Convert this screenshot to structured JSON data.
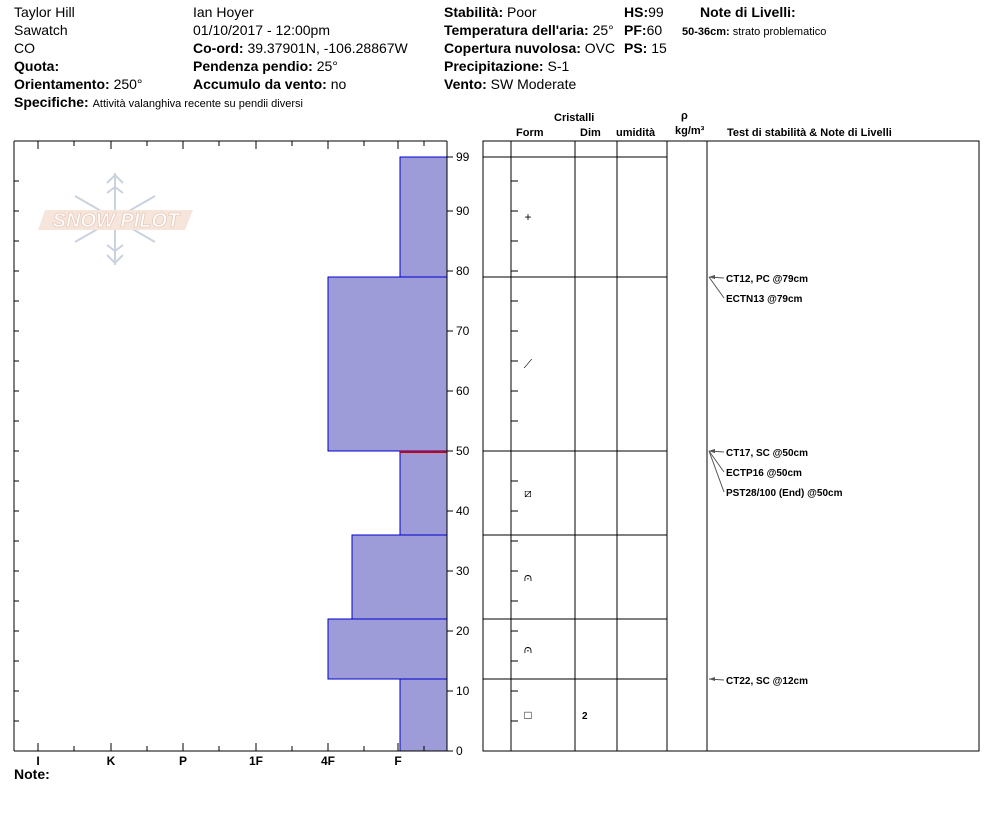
{
  "header": {
    "site": "Taylor Hill",
    "range": "Sawatch",
    "state": "CO",
    "elevation_label": "Quota:",
    "aspect_label": "Orientamento:",
    "aspect_value": "250°",
    "specifics_label": "Specifiche:",
    "specifics_value": "Attività valanghiva recente su pendii diversi",
    "observer": "Ian Hoyer",
    "datetime": "01/10/2017 - 12:00pm",
    "coord_label": "Co-ord:",
    "coord_value": "39.37901N, -106.28867W",
    "slope_label": "Pendenza pendio:",
    "slope_value": "25°",
    "wind_loading_label": "Accumulo da vento:",
    "wind_loading_value": "no",
    "stability_label": "Stabilità:",
    "stability_value": "Poor",
    "air_temp_label": "Temperatura dell'aria:",
    "air_temp_value": "25°",
    "sky_label": "Copertura nuvolosa:",
    "sky_value": "OVC",
    "precip_label": "Precipitazione:",
    "precip_value": "S-1",
    "wind_label": "Vento:",
    "wind_value": "SW Moderate",
    "hs_label": "HS:",
    "hs_value": "99",
    "pf_label": "PF:",
    "pf_value": "60",
    "ps_label": "PS:",
    "ps_value": "15",
    "layer_notes_label": "Note di Livelli:",
    "layer_note_range": "50-36cm:",
    "layer_note_text": "strato problematico"
  },
  "columns": {
    "crystals": "Cristalli",
    "form": "Form",
    "size": "Dim",
    "moisture": "umidità",
    "rho": "ρ",
    "density_unit": "kg/m³",
    "tests": "Test di stabilità & Note di Livelli"
  },
  "notes_label": "Note:",
  "logo_text": "SNOW PILOT",
  "chart_data": {
    "type": "bar",
    "title": "",
    "ylabel": "",
    "ylim": [
      0,
      99
    ],
    "y_ticks": [
      0,
      10,
      20,
      30,
      40,
      50,
      60,
      70,
      80,
      90,
      99
    ],
    "hardness_scale": [
      "I",
      "K",
      "P",
      "1F",
      "4F",
      "F"
    ],
    "layers": [
      {
        "top": 99,
        "bottom": 79,
        "hardness": "F"
      },
      {
        "top": 79,
        "bottom": 50,
        "hardness": "4F"
      },
      {
        "top": 50,
        "bottom": 36,
        "hardness": "F"
      },
      {
        "top": 36,
        "bottom": 22,
        "hardness": "4F-"
      },
      {
        "top": 22,
        "bottom": 12,
        "hardness": "4F"
      },
      {
        "top": 12,
        "bottom": 0,
        "hardness": "F"
      }
    ],
    "layer_boundaries": [
      99,
      79,
      50,
      36,
      22,
      12
    ],
    "crystal_forms": [
      {
        "height": 89,
        "symbol": "+",
        "size": ""
      },
      {
        "height": 64.5,
        "symbol": "⟋",
        "size": ""
      },
      {
        "height": 43,
        "symbol": "⧄",
        "size": ""
      },
      {
        "height": 29,
        "symbol": "⩀",
        "size": ""
      },
      {
        "height": 17,
        "symbol": "⩀",
        "size": ""
      },
      {
        "height": 6,
        "symbol": "□",
        "size": "2"
      }
    ],
    "weak_layer": 50,
    "stability_tests": [
      {
        "height": 79,
        "text": "CT12, PC @79cm"
      },
      {
        "height": 79,
        "text": "ECTN13 @79cm"
      },
      {
        "height": 50,
        "text": "CT17, SC @50cm"
      },
      {
        "height": 50,
        "text": "ECTP16 @50cm"
      },
      {
        "height": 50,
        "text": "PST28/100 (End) @50cm"
      },
      {
        "height": 12,
        "text": "CT22, SC @12cm"
      }
    ],
    "colors": {
      "layer_fill": "#9d9bd8",
      "layer_edge": "#0000cc",
      "weak_layer": "#cc0000"
    }
  }
}
